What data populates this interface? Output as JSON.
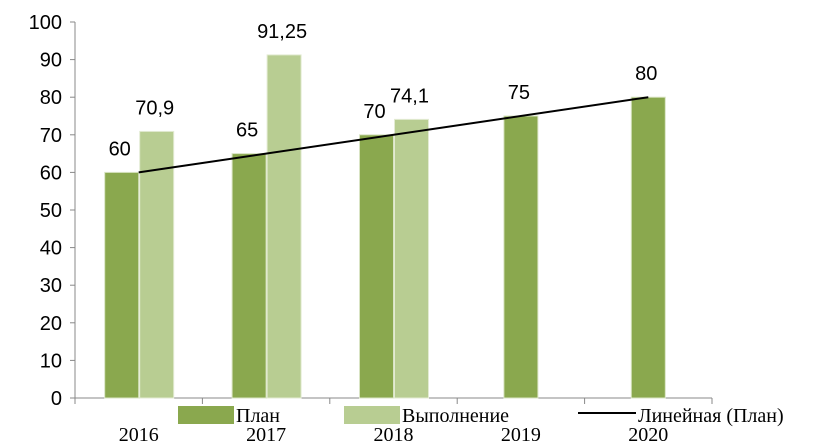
{
  "chart_data": {
    "type": "bar",
    "categories": [
      "2016",
      "2017",
      "2018",
      "2019",
      "2020"
    ],
    "series": [
      {
        "name": "План",
        "values": [
          60,
          65,
          70,
          75,
          80
        ],
        "labels": [
          "60",
          "65",
          "70",
          "75",
          "80"
        ],
        "color": "#8aa84e"
      },
      {
        "name": "Выполнение",
        "values": [
          70.9,
          91.25,
          74.1,
          null,
          null
        ],
        "labels": [
          "70,9",
          "91,25",
          "74,1",
          "",
          ""
        ],
        "color": "#b8cd92"
      }
    ],
    "trendline": {
      "name": "Линейная (План)",
      "of_series": "План",
      "kind": "linear",
      "color": "#000000"
    },
    "y_ticks": [
      "0",
      "10",
      "20",
      "30",
      "40",
      "50",
      "60",
      "70",
      "80",
      "90",
      "100"
    ],
    "ylim": [
      0,
      100
    ],
    "grid": false,
    "legend": "bottom",
    "title": "",
    "xlabel": "",
    "ylabel": ""
  }
}
